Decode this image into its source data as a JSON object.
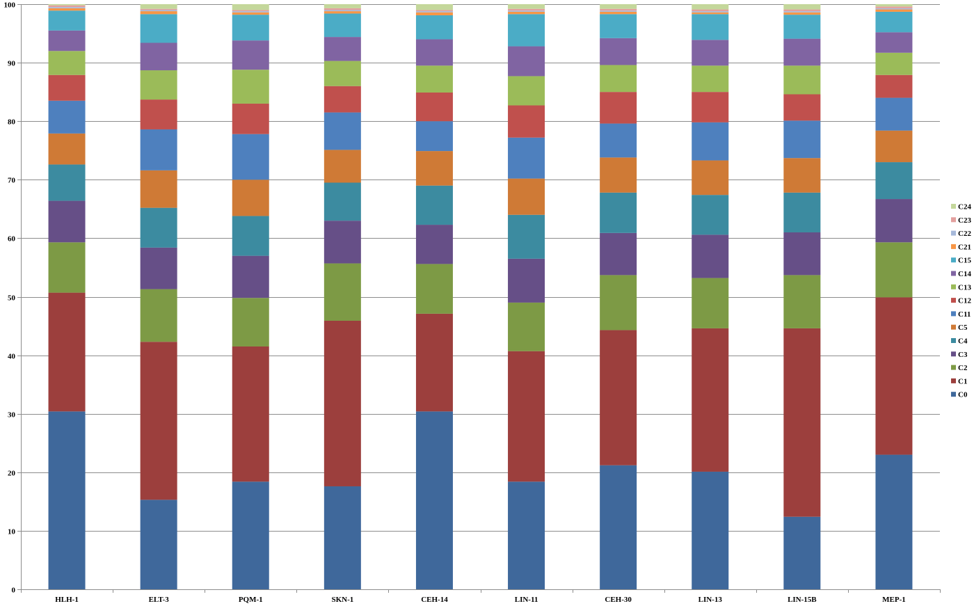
{
  "chart_data": {
    "type": "bar",
    "stacked": true,
    "title": "",
    "xlabel": "",
    "ylabel": "",
    "ylim": [
      0,
      100
    ],
    "ytick_step": 10,
    "grid": "horizontal",
    "legend_position": "right",
    "categories": [
      "HLH-1",
      "ELT-3",
      "PQM-1",
      "SKN-1",
      "CEH-14",
      "LIN-11",
      "CEH-30",
      "LIN-13",
      "LIN-15B",
      "MEP-1"
    ],
    "series": [
      {
        "name": "C0",
        "color": "#3F689B",
        "values": [
          30.4,
          15.3,
          18.4,
          17.6,
          30.4,
          18.4,
          21.2,
          20.1,
          12.4,
          23.0
        ]
      },
      {
        "name": "C1",
        "color": "#9C3F3D",
        "values": [
          20.3,
          27.0,
          23.1,
          28.3,
          16.7,
          22.3,
          23.1,
          24.5,
          32.2,
          26.9
        ]
      },
      {
        "name": "C2",
        "color": "#7D9A45",
        "values": [
          8.6,
          9.0,
          8.3,
          9.8,
          8.5,
          8.3,
          9.4,
          8.6,
          9.1,
          9.4
        ]
      },
      {
        "name": "C3",
        "color": "#664F87",
        "values": [
          7.1,
          7.1,
          7.2,
          7.3,
          6.7,
          7.5,
          7.2,
          7.4,
          7.3,
          7.4
        ]
      },
      {
        "name": "C4",
        "color": "#3C8BA0",
        "values": [
          6.2,
          6.8,
          6.8,
          6.5,
          6.7,
          7.5,
          6.9,
          6.8,
          6.8,
          6.3
        ]
      },
      {
        "name": "C5",
        "color": "#CF7A36",
        "values": [
          5.3,
          6.4,
          6.2,
          5.6,
          5.9,
          6.2,
          6.0,
          5.9,
          5.9,
          5.4
        ]
      },
      {
        "name": "C11",
        "color": "#4E80BE",
        "values": [
          5.6,
          7.0,
          7.8,
          6.4,
          5.1,
          7.0,
          5.8,
          6.5,
          6.4,
          5.6
        ]
      },
      {
        "name": "C12",
        "color": "#C0504D",
        "values": [
          4.4,
          5.1,
          5.2,
          4.5,
          4.9,
          5.5,
          5.4,
          5.2,
          4.5,
          3.9
        ]
      },
      {
        "name": "C13",
        "color": "#9BBB59",
        "values": [
          4.1,
          5.0,
          5.8,
          4.3,
          4.6,
          5.0,
          4.6,
          4.5,
          4.9,
          3.8
        ]
      },
      {
        "name": "C14",
        "color": "#8064A2",
        "values": [
          3.5,
          4.7,
          5.0,
          4.1,
          4.5,
          5.1,
          4.6,
          4.4,
          4.6,
          3.5
        ]
      },
      {
        "name": "C15",
        "color": "#4BACC6",
        "values": [
          3.4,
          4.9,
          4.4,
          4.0,
          4.1,
          5.5,
          4.1,
          4.4,
          4.1,
          3.5
        ]
      },
      {
        "name": "C21",
        "color": "#F79646",
        "values": [
          0.4,
          0.5,
          0.4,
          0.4,
          0.5,
          0.4,
          0.4,
          0.3,
          0.4,
          0.4
        ]
      },
      {
        "name": "C22",
        "color": "#A6B9DA",
        "values": [
          0.2,
          0.2,
          0.2,
          0.2,
          0.2,
          0.2,
          0.2,
          0.2,
          0.2,
          0.2
        ]
      },
      {
        "name": "C23",
        "color": "#E3A09E",
        "values": [
          0.3,
          0.2,
          0.2,
          0.3,
          0.2,
          0.3,
          0.3,
          0.3,
          0.3,
          0.3
        ]
      },
      {
        "name": "C24",
        "color": "#C4D79B",
        "values": [
          0.2,
          0.8,
          1.0,
          0.7,
          1.0,
          0.8,
          0.8,
          0.9,
          0.9,
          0.4
        ]
      }
    ]
  }
}
